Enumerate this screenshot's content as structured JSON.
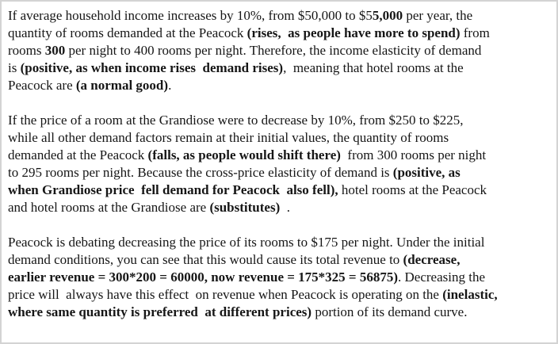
{
  "page": {
    "background_color": "#ffffff",
    "border_color": "#d3d3d3",
    "text_color": "#161616"
  },
  "document": {
    "paragraphs": [
      {
        "lines": [
          {
            "runs": [
              {
                "t": "If average household income increases by 10%, from $50,000 to $5",
                "b": false
              },
              {
                "t": "5,000",
                "b": true
              },
              {
                "t": " per year, the",
                "b": false
              }
            ]
          },
          {
            "runs": [
              {
                "t": "quantity of rooms demanded at the Peacock ",
                "b": false
              },
              {
                "t": "(rises,  as people have more to spend)",
                "b": true
              },
              {
                "t": " from",
                "b": false
              }
            ]
          },
          {
            "runs": [
              {
                "t": "rooms ",
                "b": false
              },
              {
                "t": "300",
                "b": true
              },
              {
                "t": " per night to 400 rooms per night. Therefore, the income elasticity of demand",
                "b": false
              }
            ]
          },
          {
            "runs": [
              {
                "t": "is ",
                "b": false
              },
              {
                "t": "(positive, as when income rises  demand rises)",
                "b": true
              },
              {
                "t": ",  meaning that hotel rooms at the",
                "b": false
              }
            ]
          },
          {
            "runs": [
              {
                "t": "Peacock are ",
                "b": false
              },
              {
                "t": "(a normal good)",
                "b": true
              },
              {
                "t": ".",
                "b": false
              }
            ]
          }
        ]
      },
      {
        "lines": [
          {
            "runs": [
              {
                "t": "If the price of a room at the Grandiose were to decrease by 10%, from $250 to $225,",
                "b": false
              }
            ]
          },
          {
            "runs": [
              {
                "t": "while all other demand factors remain at their initial values, the quantity of rooms",
                "b": false
              }
            ]
          },
          {
            "runs": [
              {
                "t": "demanded at the Peacock ",
                "b": false
              },
              {
                "t": "(falls, as people would shift there)",
                "b": true
              },
              {
                "t": "  from 300 rooms per night",
                "b": false
              }
            ]
          },
          {
            "runs": [
              {
                "t": "to 295 rooms per night. Because the cross-price elasticity of demand is ",
                "b": false
              },
              {
                "t": "(positive, as",
                "b": true
              }
            ]
          },
          {
            "runs": [
              {
                "t": "when Grandiose price  fell demand for Peacock  also fell),",
                "b": true
              },
              {
                "t": " hotel rooms at the Peacock",
                "b": false
              }
            ]
          },
          {
            "runs": [
              {
                "t": "and hotel rooms at the Grandiose are ",
                "b": false
              },
              {
                "t": "(substitutes)",
                "b": true
              },
              {
                "t": "  .",
                "b": false
              }
            ]
          }
        ]
      },
      {
        "lines": [
          {
            "runs": [
              {
                "t": "Peacock is debating decreasing the price of its rooms to $175 per night. Under the initial",
                "b": false
              }
            ]
          },
          {
            "runs": [
              {
                "t": "demand conditions, you can see that this would cause its total revenue to ",
                "b": false
              },
              {
                "t": "(decrease,",
                "b": true
              }
            ]
          },
          {
            "runs": [
              {
                "t": "earlier revenue = 300*200 = 60000, now revenue = 175*325 = 56875)",
                "b": true
              },
              {
                "t": ". Decreasing the",
                "b": false
              }
            ]
          },
          {
            "runs": [
              {
                "t": "price will  always have this effect  on revenue when Peacock is operating on the ",
                "b": false
              },
              {
                "t": "(inelastic,",
                "b": true
              }
            ]
          },
          {
            "runs": [
              {
                "t": "where same quantity is preferred  at different prices)",
                "b": true
              },
              {
                "t": " portion of its demand curve.",
                "b": false
              }
            ]
          }
        ]
      }
    ]
  }
}
